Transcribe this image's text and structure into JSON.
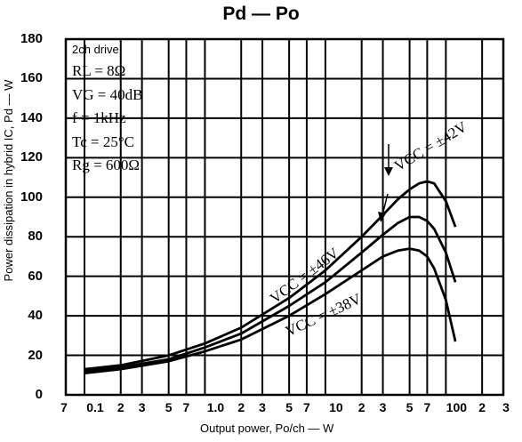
{
  "chart_data": {
    "type": "line",
    "title": "Pd — Po",
    "xlabel": "Output power, Po/ch — W",
    "ylabel": "Power dissipation in hybrid IC, Pd — W",
    "x_scale": "log",
    "xlim": [
      0.07,
      300
    ],
    "ylim": [
      0,
      180
    ],
    "y_ticks": [
      "0",
      "20",
      "40",
      "60",
      "80",
      "100",
      "120",
      "140",
      "160",
      "180"
    ],
    "x_ticks": [
      "7",
      "0.1",
      "2",
      "3",
      "5",
      "7",
      "1.0",
      "2",
      "3",
      "5",
      "7",
      "10",
      "2",
      "3",
      "5",
      "7",
      "100",
      "2",
      "3"
    ],
    "grid": true,
    "conditions": [
      "2ch drive",
      "RL = 8Ω",
      "VG = 40dB",
      "f = 1kHz",
      "Tc = 25°C",
      "Rg = 600Ω"
    ],
    "series": [
      {
        "name": "VCC = ±42V",
        "x": [
          0.1,
          0.2,
          0.5,
          1,
          2,
          5,
          10,
          20,
          30,
          40,
          50,
          60,
          70,
          80,
          100,
          120
        ],
        "y": [
          13,
          15,
          20,
          26,
          34,
          49,
          63,
          80,
          91,
          99,
          104,
          107,
          108,
          107,
          98,
          85
        ]
      },
      {
        "name": "VCC = ±46V",
        "x": [
          0.1,
          0.2,
          0.5,
          1,
          2,
          5,
          10,
          20,
          30,
          40,
          50,
          60,
          70,
          80,
          100,
          120
        ],
        "y": [
          12,
          14,
          18,
          24,
          31,
          45,
          57,
          72,
          81,
          87,
          90,
          90,
          88,
          84,
          72,
          57
        ]
      },
      {
        "name": "VCC = ±38V",
        "x": [
          0.1,
          0.2,
          0.5,
          1,
          2,
          5,
          10,
          20,
          30,
          40,
          50,
          60,
          70,
          80,
          100,
          120
        ],
        "y": [
          11,
          13,
          17,
          22,
          28,
          40,
          51,
          63,
          70,
          73,
          74,
          73,
          70,
          64,
          48,
          27
        ]
      }
    ]
  }
}
